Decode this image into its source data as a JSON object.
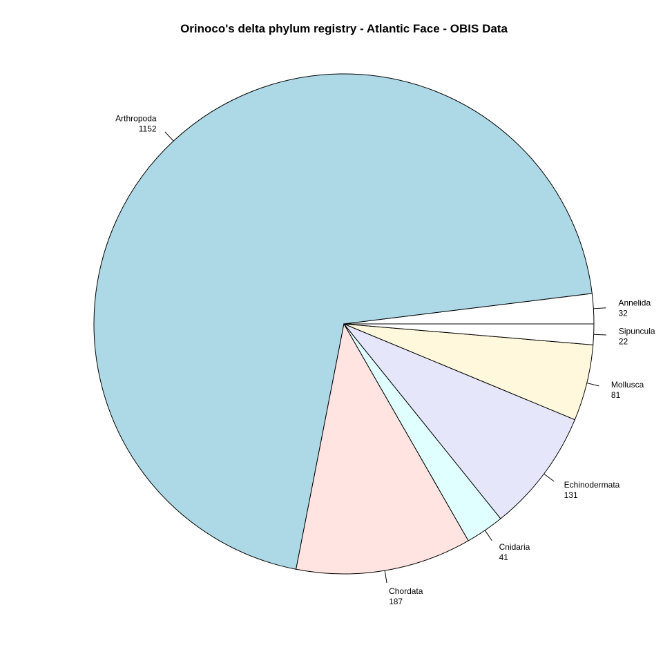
{
  "chart_data": {
    "type": "pie",
    "title": "Orinoco's delta phylum registry - Atlantic Face - OBIS Data",
    "direction": "counterclockwise",
    "start": "east",
    "slices": [
      {
        "label": "Annelida",
        "value": 32,
        "color": "#ffffff"
      },
      {
        "label": "Arthropoda",
        "value": 1152,
        "color": "#add8e6"
      },
      {
        "label": "Chordata",
        "value": 187,
        "color": "#ffe4e1"
      },
      {
        "label": "Cnidaria",
        "value": 41,
        "color": "#e0ffff"
      },
      {
        "label": "Echinodermata",
        "value": 131,
        "color": "#e6e6fa"
      },
      {
        "label": "Mollusca",
        "value": 81,
        "color": "#fff8dc"
      },
      {
        "label": "Sipuncula",
        "value": 22,
        "color": "#ffffff"
      }
    ]
  }
}
